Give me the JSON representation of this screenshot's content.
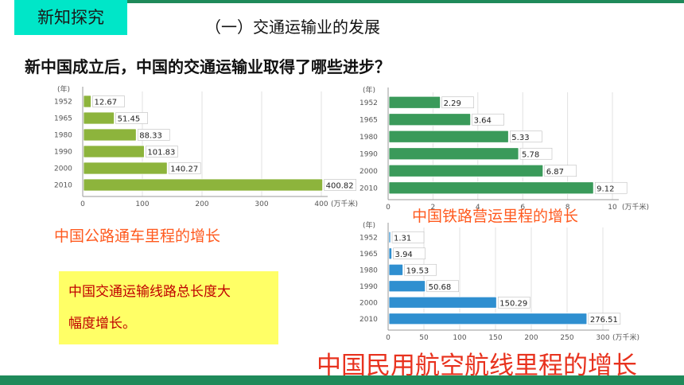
{
  "header": {
    "tag": "新知探究",
    "section_title": "（一）交通运输业的发展"
  },
  "question": "新中国成立后，中国的交通运输业取得了哪些进步？",
  "note": {
    "line1": "中国交通运输线路总长度大",
    "line2": "幅度增长。"
  },
  "colors": {
    "road": "#8db43c",
    "rail": "#3a9a5a",
    "air": "#2f8fd0",
    "accent": "#ff5a1f"
  },
  "chart_data": [
    {
      "type": "bar",
      "caption": "中国公路通车里程的增长",
      "y_unit": "(年)",
      "x_unit": "(万千米)",
      "categories": [
        "1952",
        "1965",
        "1980",
        "1990",
        "2000",
        "2010"
      ],
      "values": [
        12.67,
        51.45,
        88.33,
        101.83,
        140.27,
        400.82
      ],
      "value_labels": [
        "12.67",
        "51.45",
        "88.33",
        "101.83",
        "140.27",
        "400.82"
      ],
      "xticks": [
        "0",
        "100",
        "200",
        "300",
        "400"
      ],
      "xlim": [
        0,
        400
      ]
    },
    {
      "type": "bar",
      "caption": "中国铁路营运里程的增长",
      "y_unit": "(年)",
      "x_unit": "(万千米)",
      "categories": [
        "1952",
        "1965",
        "1980",
        "1990",
        "2000",
        "2010"
      ],
      "values": [
        2.29,
        3.64,
        5.33,
        5.78,
        6.87,
        9.12
      ],
      "value_labels": [
        "2.29",
        "3.64",
        "5.33",
        "5.78",
        "6.87",
        "9.12"
      ],
      "xticks": [
        "0",
        "2",
        "4",
        "6",
        "8",
        "10"
      ],
      "xlim": [
        0,
        10
      ]
    },
    {
      "type": "bar",
      "caption": "中国民用航空航线里程的增长",
      "y_unit": "(年)",
      "x_unit": "(万千米)",
      "categories": [
        "1952",
        "1965",
        "1980",
        "1990",
        "2000",
        "2010"
      ],
      "values": [
        1.31,
        3.94,
        19.53,
        50.68,
        150.29,
        276.51
      ],
      "value_labels": [
        "1.31",
        "3.94",
        "19.53",
        "50.68",
        "150.29",
        "276.51"
      ],
      "xticks": [
        "0",
        "50",
        "100",
        "150",
        "200",
        "250",
        "300"
      ],
      "xlim": [
        0,
        300
      ]
    }
  ]
}
